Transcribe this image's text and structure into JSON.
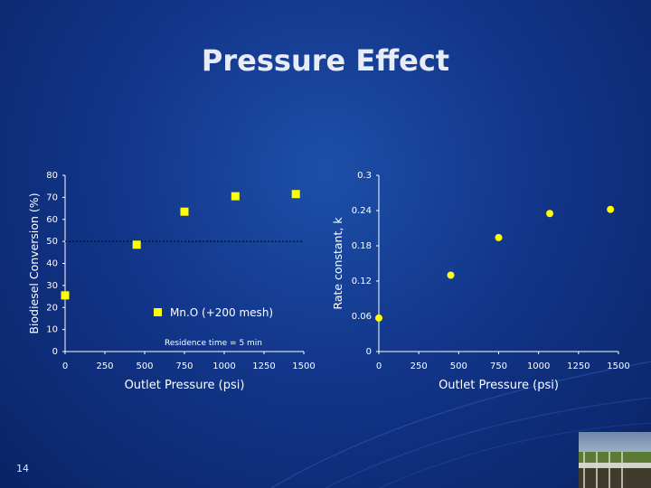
{
  "slide": {
    "title": "Pressure Effect",
    "number": "14"
  },
  "colors": {
    "background": "#12368a",
    "text": "#ffffff",
    "square_marker": "#ffff00",
    "circle_marker": "#ffff00",
    "grid_dotted": "#000000"
  },
  "chart_data": [
    {
      "type": "scatter",
      "xlabel": "Outlet Pressure (psi)",
      "ylabel": "Biodiesel Conversion (%)",
      "xlim": [
        0,
        1500
      ],
      "ylim": [
        0,
        80
      ],
      "xticks": [
        "0",
        "250",
        "500",
        "750",
        "1000",
        "1250",
        "1500"
      ],
      "yticks": [
        "0",
        "10",
        "20",
        "30",
        "40",
        "50",
        "60",
        "70",
        "80"
      ],
      "reference_line_y": 50,
      "legend": {
        "label": "Mn.O (+200 mesh)",
        "marker": "square",
        "placement": "center"
      },
      "annotation": "Residence time = 5 min",
      "series": [
        {
          "name": "Mn.O (+200 mesh)",
          "marker": "square",
          "x": [
            0,
            450,
            750,
            1070,
            1450
          ],
          "y": [
            25.5,
            48.5,
            63.5,
            70.5,
            71.5
          ]
        }
      ]
    },
    {
      "type": "scatter",
      "xlabel": "Outlet Pressure (psi)",
      "ylabel": "Rate constant, k",
      "xlim": [
        0,
        1500
      ],
      "ylim": [
        0,
        0.3
      ],
      "xticks": [
        "0",
        "250",
        "500",
        "750",
        "1000",
        "1250",
        "1500"
      ],
      "yticks": [
        "0",
        "0.06",
        "0.12",
        "0.18",
        "0.24",
        "0.3"
      ],
      "series": [
        {
          "marker": "circle",
          "x": [
            0,
            450,
            750,
            1070,
            1450
          ],
          "y": [
            0.057,
            0.13,
            0.194,
            0.235,
            0.242
          ]
        }
      ]
    }
  ]
}
